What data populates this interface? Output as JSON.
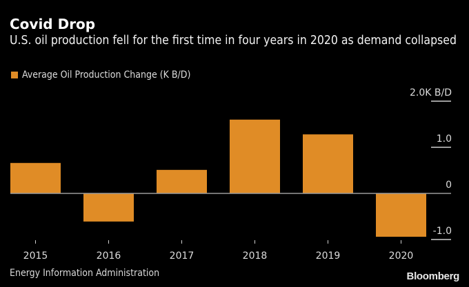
{
  "header": {
    "title": "Covid Drop",
    "subtitle": "U.S. oil production fell for the first time in four years in 2020 as demand collapsed"
  },
  "footer": {
    "source": "Energy Information Administration",
    "logo": "Bloomberg"
  },
  "colors": {
    "background": "#000000",
    "bar": "#E08C26",
    "zero_line": "#9a9a9a",
    "grid": "#cfcfcf",
    "text": "#dcdcdc"
  },
  "chart_data": {
    "type": "bar",
    "title": "Covid Drop",
    "subtitle": "U.S. oil production fell for the first time in four years in 2020 as demand collapsed",
    "categories": [
      "2015",
      "2016",
      "2017",
      "2018",
      "2019",
      "2020"
    ],
    "series": [
      {
        "name": "Average Oil Production Change (K B/D)",
        "values": [
          0.66,
          -0.61,
          0.51,
          1.6,
          1.28,
          -0.94
        ]
      }
    ],
    "legend": {
      "position": "top-left",
      "entries": [
        "Average Oil Production Change (K B/D)"
      ]
    },
    "xlabel": "",
    "ylabel": "",
    "y_axis": {
      "position": "right",
      "ticks": [
        2.0,
        1.0,
        0,
        -1.0
      ],
      "tick_labels": [
        "2.0K B/D",
        "1.0",
        "0",
        "-1.0"
      ],
      "ylim": [
        -1.0,
        2.0
      ]
    },
    "grid": false,
    "source": "Energy Information Administration"
  }
}
